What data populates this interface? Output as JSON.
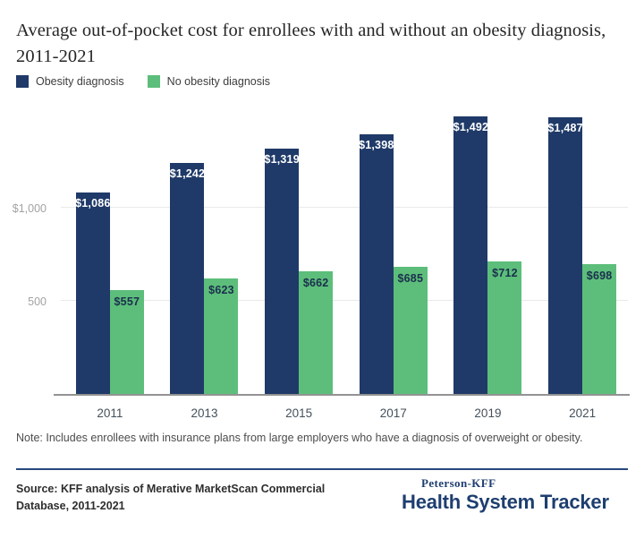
{
  "title": "Average out-of-pocket cost for enrollees with and without an obesity diagnosis, 2011-2021",
  "chart_data": {
    "type": "bar",
    "title": "Average out-of-pocket cost for enrollees with and without an obesity diagnosis, 2011-2021",
    "categories": [
      "2011",
      "2013",
      "2015",
      "2017",
      "2019",
      "2021"
    ],
    "series": [
      {
        "name": "Obesity diagnosis",
        "color": "#1f3a68",
        "label_color": "#ffffff",
        "values": [
          1086,
          1242,
          1319,
          1398,
          1492,
          1487
        ],
        "labels": [
          "$1,086",
          "$1,242",
          "$1,319",
          "$1,398",
          "$1,492",
          "$1,487"
        ]
      },
      {
        "name": "No obesity diagnosis",
        "color": "#5cbe7a",
        "label_color": "#1b2f4e",
        "values": [
          557,
          623,
          662,
          685,
          712,
          698
        ],
        "labels": [
          "$557",
          "$623",
          "$662",
          "$685",
          "$712",
          "$698"
        ]
      }
    ],
    "xlabel": "",
    "ylabel": "",
    "ylim": [
      0,
      1590
    ],
    "yticks": [
      {
        "value": 1000,
        "label": "$1,000"
      },
      {
        "value": 500,
        "label": "500"
      }
    ],
    "grid": true,
    "legend_position": "top-left"
  },
  "note": "Note: Includes enrollees with insurance plans from large employers who have a diagnosis of overweight or obesity.",
  "source_lines": [
    "Source: KFF analysis of Merative MarketScan Commercial",
    "Database, 2011-2021"
  ],
  "logo": {
    "brand": "Peterson-KFF",
    "name": "Health System Tracker"
  },
  "colors": {
    "navy_bar": "#1f3a68",
    "green_bar": "#5cbe7a",
    "logo_navy": "#1e3e70",
    "divider_navy": "#26497c"
  }
}
